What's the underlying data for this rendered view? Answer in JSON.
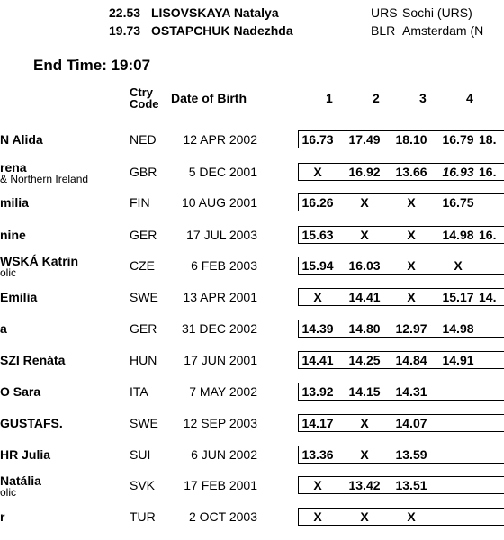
{
  "records": [
    {
      "mark": "22.53",
      "name": "LISOVSKAYA Natalya",
      "country": "URS",
      "venue": "Sochi (URS)"
    },
    {
      "mark": "19.73",
      "name": "OSTAPCHUK Nadezhda",
      "country": "BLR",
      "venue": "Amsterdam (N"
    }
  ],
  "end_time": "End Time: 19:07",
  "columns": {
    "ctry_code_line1": "Ctry",
    "ctry_code_line2": "Code",
    "date_of_birth": "Date of Birth",
    "attempts": [
      "1",
      "2",
      "3",
      "4"
    ]
  },
  "athletes": [
    {
      "name": "N Alida",
      "sub": "",
      "ctry": "NED",
      "dob": "12 APR 2002",
      "results": [
        "16.73",
        "17.49",
        "18.10",
        "16.79",
        "18."
      ]
    },
    {
      "name": "rena",
      "sub": "& Northern Ireland",
      "ctry": "GBR",
      "dob": "5 DEC 2001",
      "results": [
        "X",
        "16.92",
        "13.66",
        "16.93",
        "16."
      ]
    },
    {
      "name": "milia",
      "sub": "",
      "ctry": "FIN",
      "dob": "10 AUG 2001",
      "results": [
        "16.26",
        "X",
        "X",
        "16.75",
        ""
      ]
    },
    {
      "name": "nine",
      "sub": "",
      "ctry": "GER",
      "dob": "17 JUL 2003",
      "results": [
        "15.63",
        "X",
        "X",
        "14.98",
        "16."
      ]
    },
    {
      "name": "WSKÁ Katrin",
      "sub": "olic",
      "ctry": "CZE",
      "dob": "6 FEB 2003",
      "results": [
        "15.94",
        "16.03",
        "X",
        "X",
        ""
      ]
    },
    {
      "name": "Emilia",
      "sub": "",
      "ctry": "SWE",
      "dob": "13 APR 2001",
      "results": [
        "X",
        "14.41",
        "X",
        "15.17",
        "14."
      ]
    },
    {
      "name": "a",
      "sub": "",
      "ctry": "GER",
      "dob": "31 DEC 2002",
      "results": [
        "14.39",
        "14.80",
        "12.97",
        "14.98",
        ""
      ]
    },
    {
      "name": "SZI Renáta",
      "sub": "",
      "ctry": "HUN",
      "dob": "17 JUN 2001",
      "results": [
        "14.41",
        "14.25",
        "14.84",
        "14.91",
        ""
      ]
    },
    {
      "name": "O Sara",
      "sub": "",
      "ctry": "ITA",
      "dob": "7 MAY 2002",
      "results": [
        "13.92",
        "14.15",
        "14.31",
        "",
        ""
      ]
    },
    {
      "name": "GUSTAFS.",
      "sub": "",
      "ctry": "SWE",
      "dob": "12 SEP 2003",
      "results": [
        "14.17",
        "X",
        "14.07",
        "",
        ""
      ]
    },
    {
      "name": "HR Julia",
      "sub": "",
      "ctry": "SUI",
      "dob": "6 JUN 2002",
      "results": [
        "13.36",
        "X",
        "13.59",
        "",
        ""
      ]
    },
    {
      "name": "Natália",
      "sub": "olic",
      "ctry": "SVK",
      "dob": "17 FEB 2001",
      "results": [
        "X",
        "13.42",
        "13.51",
        "",
        ""
      ]
    },
    {
      "name": "r",
      "sub": "",
      "ctry": "TUR",
      "dob": "2 OCT 2003",
      "results": [
        "X",
        "X",
        "X",
        "",
        ""
      ]
    }
  ]
}
